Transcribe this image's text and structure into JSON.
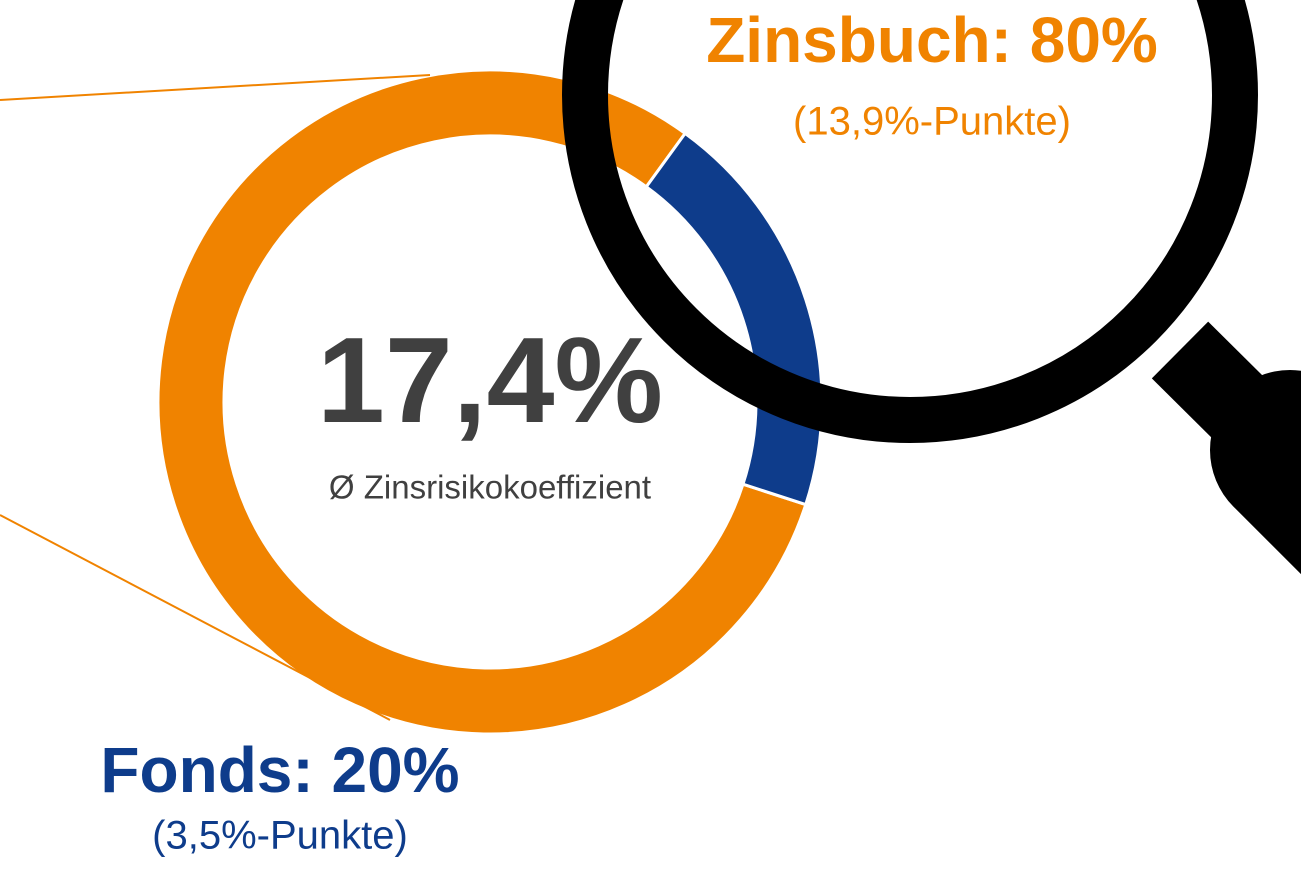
{
  "chart_data": {
    "type": "donut",
    "value_labels": [
      "Zinsbuch: 80%",
      "Fonds: 20%"
    ],
    "values": [
      80,
      20
    ],
    "colors": [
      "#f08300",
      "#0e3c8b"
    ],
    "sublabels": [
      "(13,9%-Punkte)",
      "(3,5%-Punkte)"
    ],
    "center_value_label": "17,4%",
    "center_label": "Ø Zinsrisikokoeffizient"
  }
}
